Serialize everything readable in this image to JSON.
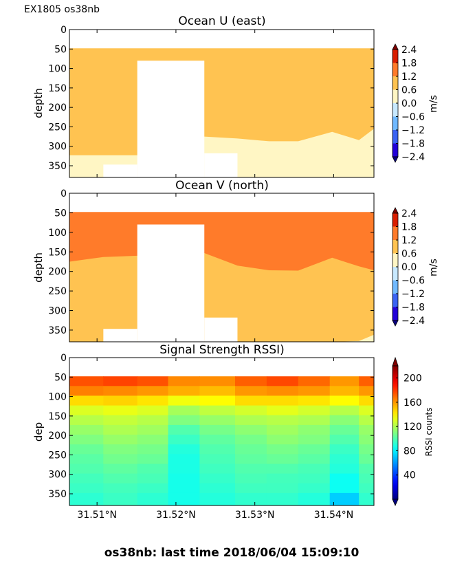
{
  "header": "EX1805 os38nb",
  "footer": "os38nb: last time 2018/06/04 15:09:10",
  "chart_data": [
    {
      "type": "heatmap",
      "title": "Ocean U (east)",
      "ylabel": "depth",
      "ylim": [
        380,
        0
      ],
      "yticks": [
        "0",
        "50",
        "100",
        "150",
        "200",
        "250",
        "300",
        "350"
      ],
      "xlabel": "",
      "xlim": [
        31.5065,
        31.5451
      ],
      "xticks": [],
      "colorbar": {
        "label": "m/s",
        "ticks": [
          "2.4",
          "1.8",
          "1.2",
          "0.6",
          "0.0",
          "−0.6",
          "−1.2",
          "−1.8",
          "−2.4"
        ],
        "colors": [
          "#7f0000",
          "#d91e00",
          "#ff7b2a",
          "#ffc351",
          "#fff6c4",
          "#c8e9ff",
          "#70b9ff",
          "#3a63f3",
          "#2200d9",
          "#0a0080"
        ],
        "contour_levels": [
          -2.4,
          -1.8,
          -1.2,
          -0.6,
          0.0,
          0.6,
          1.2,
          1.8,
          2.4
        ]
      },
      "data_top": 48,
      "x_breaks": [
        31.5065,
        31.5151,
        31.5236,
        31.5278,
        31.5451
      ],
      "gap": {
        "x": [
          31.5151,
          31.5236
        ],
        "depth_top": 80
      },
      "layer_base": "#ffc351",
      "layer_low": "#fff6c4",
      "boundary": [
        {
          "x": 31.5065,
          "depth": 323
        },
        {
          "x": 31.5151,
          "depth": 323
        },
        {
          "x": 31.5236,
          "depth": 275
        },
        {
          "x": 31.5278,
          "depth": 280
        },
        {
          "x": 31.5318,
          "depth": 287
        },
        {
          "x": 31.5355,
          "depth": 287
        },
        {
          "x": 31.5398,
          "depth": 263
        },
        {
          "x": 31.5432,
          "depth": 284
        },
        {
          "x": 31.5451,
          "depth": 255
        }
      ],
      "bottom_mask": [
        {
          "x": [
            31.5108,
            31.5151
          ],
          "depth": 347
        },
        {
          "x": [
            31.5236,
            31.5278
          ],
          "depth": 318
        }
      ]
    },
    {
      "type": "heatmap",
      "title": "Ocean V (north)",
      "ylabel": "depth",
      "ylim": [
        380,
        0
      ],
      "yticks": [
        "0",
        "50",
        "100",
        "150",
        "200",
        "250",
        "300",
        "350"
      ],
      "xlabel": "",
      "xlim": [
        31.5065,
        31.5451
      ],
      "xticks": [],
      "colorbar": {
        "label": "m/s",
        "ticks": [
          "2.4",
          "1.8",
          "1.2",
          "0.6",
          "0.0",
          "−0.6",
          "−1.2",
          "−1.8",
          "−2.4"
        ],
        "colors": [
          "#7f0000",
          "#d91e00",
          "#ff7b2a",
          "#ffc351",
          "#fff6c4",
          "#c8e9ff",
          "#70b9ff",
          "#3a63f3",
          "#2200d9",
          "#0a0080"
        ],
        "contour_levels": [
          -2.4,
          -1.8,
          -1.2,
          -0.6,
          0.0,
          0.6,
          1.2,
          1.8,
          2.4
        ]
      },
      "data_top": 48,
      "x_breaks": [
        31.5065,
        31.5151,
        31.5236,
        31.5278,
        31.5451
      ],
      "gap": {
        "x": [
          31.5151,
          31.5236
        ],
        "depth_top": 80
      },
      "layer_top": "#ff7b2a",
      "layer_mid": "#ffc351",
      "layer_low": "#fff6c4",
      "boundary": [
        {
          "x": 31.5065,
          "depth": 175
        },
        {
          "x": 31.5108,
          "depth": 163
        },
        {
          "x": 31.5151,
          "depth": 160
        },
        {
          "x": 31.5236,
          "depth": 153
        },
        {
          "x": 31.5278,
          "depth": 185
        },
        {
          "x": 31.5318,
          "depth": 197
        },
        {
          "x": 31.5355,
          "depth": 198
        },
        {
          "x": 31.5398,
          "depth": 165
        },
        {
          "x": 31.5432,
          "depth": 187
        },
        {
          "x": 31.5451,
          "depth": 197
        }
      ],
      "boundary_low": [
        {
          "x": 31.5278,
          "depth": 380
        },
        {
          "x": 31.5398,
          "depth": 380
        },
        {
          "x": 31.5432,
          "depth": 378
        },
        {
          "x": 31.5451,
          "depth": 362
        }
      ],
      "bottom_mask": [
        {
          "x": [
            31.5108,
            31.5151
          ],
          "depth": 347
        },
        {
          "x": [
            31.5236,
            31.5278
          ],
          "depth": 318
        }
      ]
    },
    {
      "type": "heatmap",
      "title": "Signal Strength RSSI)",
      "ylabel": "dep",
      "ylim": [
        380,
        0
      ],
      "yticks": [
        "0",
        "50",
        "100",
        "150",
        "200",
        "250",
        "300",
        "350"
      ],
      "xlabel": "",
      "xlim": [
        31.5065,
        31.5451
      ],
      "xticks": [
        {
          "value": 31.51,
          "label": "31.51°N"
        },
        {
          "value": 31.52,
          "label": "31.52°N"
        },
        {
          "value": 31.53,
          "label": "31.53°N"
        },
        {
          "value": 31.54,
          "label": "31.54°N"
        }
      ],
      "colorbar": {
        "label": "RSSI counts",
        "ticks": [
          "200",
          "160",
          "120",
          "80",
          "40"
        ],
        "range": [
          0,
          220
        ],
        "colormap": "jet"
      },
      "x_edges": [
        31.5065,
        31.5108,
        31.5151,
        31.519,
        31.523,
        31.5275,
        31.5315,
        31.5355,
        31.5395,
        31.5432,
        31.5451
      ],
      "depth_edges": [
        48,
        73,
        98,
        123,
        148,
        173,
        198,
        223,
        248,
        273,
        298,
        323,
        348,
        380
      ],
      "values": [
        [
          175,
          178,
          175,
          163,
          162,
          172,
          177,
          170,
          160,
          172
        ],
        [
          165,
          163,
          160,
          155,
          152,
          160,
          162,
          160,
          153,
          160
        ],
        [
          145,
          147,
          143,
          135,
          138,
          145,
          145,
          143,
          138,
          145
        ],
        [
          130,
          133,
          130,
          118,
          124,
          128,
          132,
          128,
          122,
          130
        ],
        [
          122,
          125,
          122,
          110,
          115,
          120,
          122,
          120,
          112,
          122
        ],
        [
          115,
          120,
          117,
          100,
          108,
          113,
          117,
          113,
          105,
          115
        ],
        [
          110,
          115,
          112,
          95,
          103,
          108,
          113,
          110,
          100,
          112
        ],
        [
          105,
          110,
          108,
          90,
          100,
          105,
          108,
          105,
          95,
          108
        ],
        [
          102,
          107,
          105,
          88,
          98,
          103,
          105,
          102,
          92,
          105
        ],
        [
          100,
          103,
          100,
          88,
          96,
          100,
          100,
          98,
          90,
          100
        ],
        [
          97,
          100,
          98,
          87,
          94,
          98,
          97,
          96,
          85,
          98
        ],
        [
          95,
          97,
          95,
          87,
          92,
          96,
          96,
          94,
          85,
          96
        ],
        [
          92,
          95,
          92,
          87,
          90,
          93,
          93,
          90,
          72,
          93
        ]
      ]
    }
  ]
}
